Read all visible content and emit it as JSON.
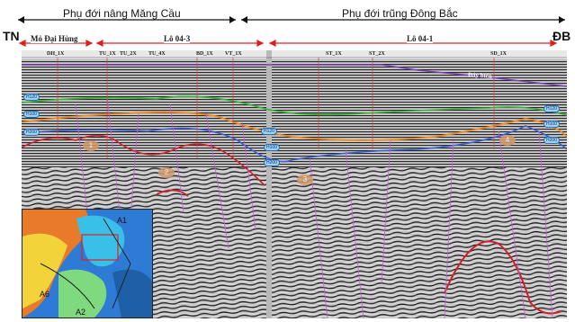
{
  "header": {
    "left_zone": "Phụ đới nâng Măng Cầu",
    "right_zone": "Phụ đới trũng Đông Bắc"
  },
  "edges": {
    "left": "TN",
    "right": "ĐB"
  },
  "blocks": {
    "mo_dai_hung": "Mỏ Đại Hùng",
    "lo_04_3": "Lô 04-3",
    "lo_04_1": "Lô 04-1"
  },
  "wells": [
    "DH_1X",
    "TU_1X",
    "TU_2X",
    "TU_4X",
    "BD_1X",
    "VT_1X",
    "ST_1X",
    "ST_2X",
    "SD_1X"
  ],
  "seabed_label": "Đáy biển",
  "horizons": [
    "H120",
    "H100",
    "H200"
  ],
  "zones": [
    "1",
    "2",
    "3",
    "4"
  ],
  "inset": {
    "labels": [
      "A1",
      "A6",
      "A2"
    ]
  },
  "colors": {
    "seabed": "#7b3fb8",
    "horizon_green": "#2fb52f",
    "horizon_orange": "#f08a1c",
    "horizon_blue": "#3a5fd0",
    "horizon_red": "#d0202a",
    "fault": "#c060d0",
    "arrow": "#e02020"
  }
}
